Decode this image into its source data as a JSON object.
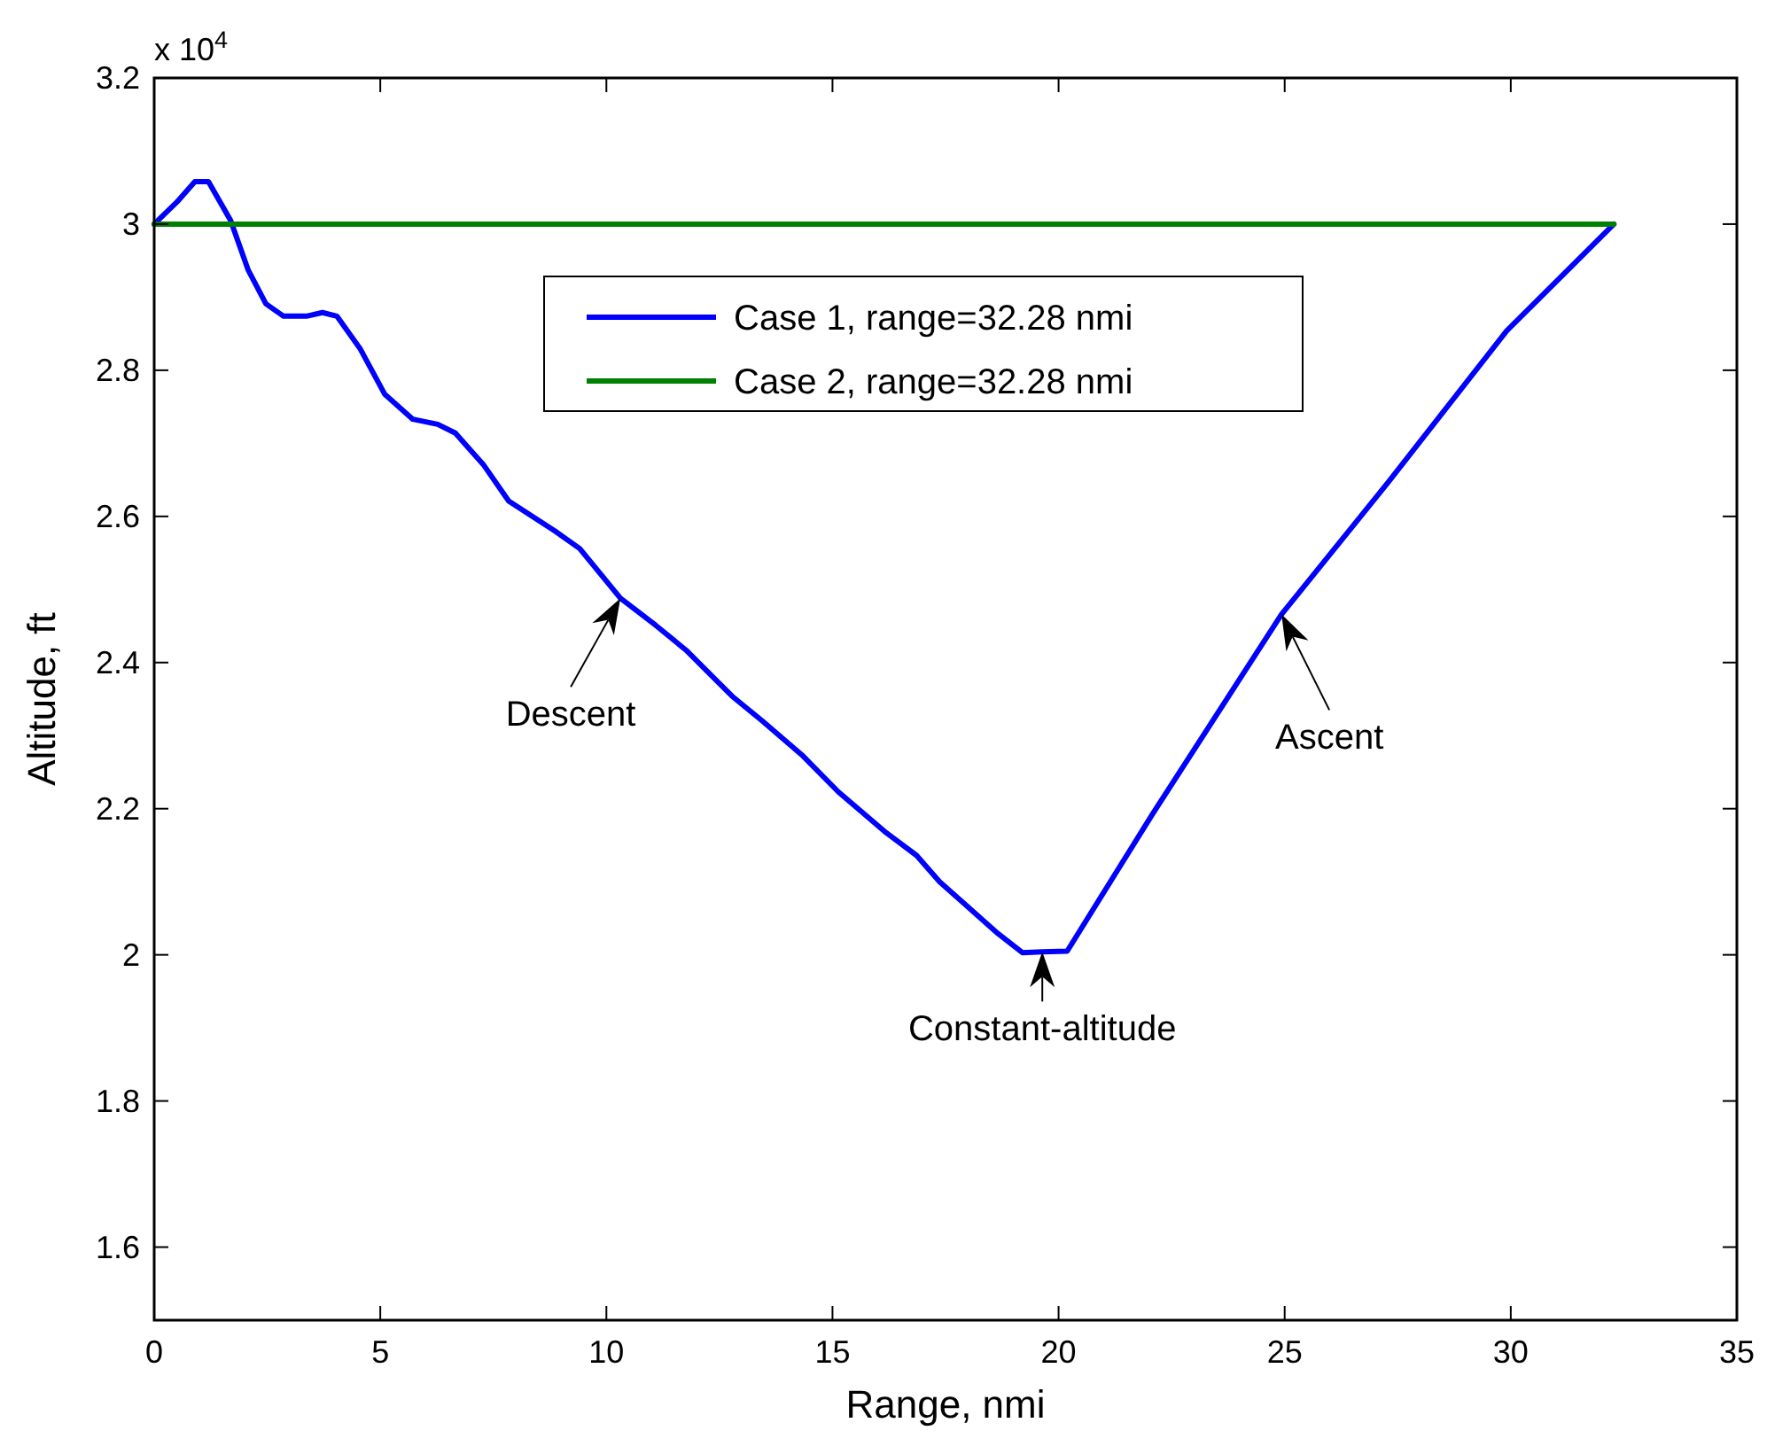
{
  "chart_data": {
    "type": "line",
    "xlabel": "Range, nmi",
    "ylabel": "Altitude, ft",
    "xlim": [
      0,
      35
    ],
    "xticks": [
      0,
      5,
      10,
      15,
      20,
      25,
      30,
      35
    ],
    "ylim": [
      1.5,
      3.2
    ],
    "yticks": [
      1.6,
      1.8,
      2,
      2.2,
      2.4,
      2.6,
      2.8,
      3,
      3.2
    ],
    "grid": false,
    "legend": "top",
    "line_style": "solid",
    "marker": "none",
    "series": [
      {
        "name": "Case 1, range=32.28 nmi",
        "color": "#0000ff",
        "x": [
          0,
          0.5,
          0.9,
          1.2,
          1.69,
          2.08,
          2.47,
          2.86,
          3.37,
          3.72,
          4.04,
          4.55,
          5.1,
          5.72,
          6.27,
          6.66,
          7.29,
          7.84,
          8.86,
          9.41,
          10.31,
          11.09,
          11.76,
          12.78,
          13.45,
          14.35,
          15.13,
          16.19,
          16.86,
          17.37,
          18.66,
          19.2,
          19.64,
          20.19,
          22.07,
          24.93,
          27.28,
          29.91,
          32.28
        ],
        "values": [
          3.0,
          3.03,
          3.058,
          3.058,
          3.005,
          2.937,
          2.891,
          2.874,
          2.874,
          2.879,
          2.874,
          2.83,
          2.767,
          2.733,
          2.726,
          2.714,
          2.67,
          2.621,
          2.58,
          2.556,
          2.488,
          2.451,
          2.417,
          2.354,
          2.32,
          2.272,
          2.223,
          2.167,
          2.136,
          2.1,
          2.029,
          2.003,
          2.004,
          2.005,
          2.192,
          2.466,
          2.646,
          2.854,
          3.0
        ]
      },
      {
        "name": "Case 2, range=32.28 nmi",
        "color": "#008000",
        "x": [
          0,
          32.28
        ],
        "values": [
          3.0,
          3.0
        ]
      }
    ],
    "annotations": [
      "x 10$^{4}$",
      {
        "text": "Descent",
        "x": 10.31,
        "y": 2.488
      },
      {
        "text": "Constant-altitude",
        "x": 19.64,
        "y": 2.004
      },
      {
        "text": "Ascent",
        "x": 24.93,
        "y": 2.466
      }
    ]
  }
}
